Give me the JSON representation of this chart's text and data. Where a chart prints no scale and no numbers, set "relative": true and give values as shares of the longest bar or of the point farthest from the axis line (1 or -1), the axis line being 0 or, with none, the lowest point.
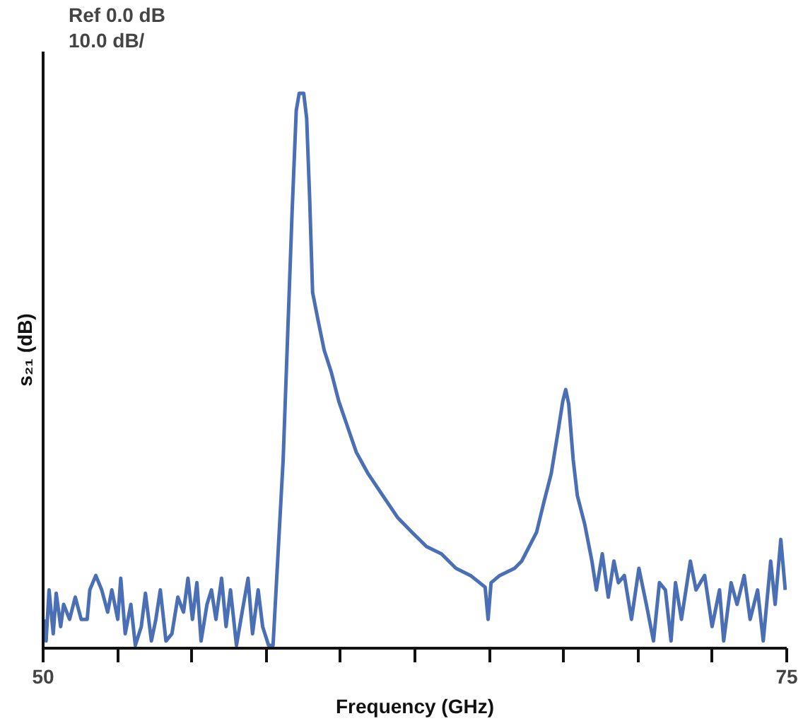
{
  "chart_data": {
    "type": "line",
    "relative": true,
    "annotations": [
      "Ref 0.0 dB",
      "10.0 dB/"
    ],
    "xlabel": "Frequency (GHz)",
    "ylabel": "s₂₁ (dB)",
    "xlim": [
      50,
      75
    ],
    "xticks": [
      50,
      {
        "value": 52.5,
        "label": null
      },
      {
        "value": 55,
        "label": null
      },
      {
        "value": 57.5,
        "label": null
      },
      {
        "value": 60,
        "label": null
      },
      {
        "value": 62.5,
        "label": null
      },
      {
        "value": 65,
        "label": null
      },
      {
        "value": 67.5,
        "label": null
      },
      {
        "value": 70,
        "label": null
      },
      {
        "value": 72.5,
        "label": null
      },
      75
    ],
    "grid": false,
    "marker": "none",
    "line_style": "solid",
    "series": [
      {
        "color": "#4a6fb5",
        "x": [
          50.05,
          50.1,
          50.2,
          50.34,
          50.44,
          50.59,
          50.69,
          50.89,
          51.08,
          51.28,
          51.48,
          51.57,
          51.77,
          51.97,
          52.17,
          52.31,
          52.51,
          52.61,
          52.76,
          52.95,
          53.1,
          53.3,
          53.44,
          53.64,
          53.79,
          53.94,
          54.13,
          54.33,
          54.53,
          54.72,
          54.87,
          55.02,
          55.17,
          55.31,
          55.51,
          55.66,
          55.81,
          56.0,
          56.15,
          56.3,
          56.5,
          56.69,
          56.89,
          57.04,
          57.23,
          57.38,
          57.58,
          57.73,
          58.07,
          58.37,
          58.51,
          58.61,
          58.76,
          58.86,
          58.96,
          59.06,
          59.25,
          59.45,
          59.69,
          59.94,
          60.19,
          60.53,
          60.93,
          61.42,
          61.91,
          62.4,
          62.89,
          63.39,
          63.88,
          64.37,
          64.86,
          64.96,
          65.06,
          65.35,
          65.85,
          66.09,
          66.34,
          66.59,
          66.83,
          67.08,
          67.32,
          67.47,
          67.57,
          67.67,
          67.82,
          67.96,
          68.21,
          68.45,
          68.6,
          68.8,
          69.0,
          69.19,
          69.34,
          69.54,
          69.78,
          70.03,
          70.28,
          70.52,
          70.72,
          70.92,
          71.11,
          71.26,
          71.46,
          71.76,
          71.95,
          72.24,
          72.49,
          72.74,
          72.88,
          73.13,
          73.33,
          73.57,
          73.77,
          74.02,
          74.21,
          74.46,
          74.61,
          74.8,
          74.95
        ],
        "values": [
          0.052,
          0.013,
          0.105,
          0.026,
          0.099,
          0.039,
          0.079,
          0.052,
          0.092,
          0.052,
          0.052,
          0.105,
          0.131,
          0.105,
          0.065,
          0.105,
          0.052,
          0.126,
          0.026,
          0.079,
          0.005,
          0.039,
          0.099,
          0.013,
          0.052,
          0.105,
          0.013,
          0.026,
          0.092,
          0.065,
          0.126,
          0.052,
          0.118,
          0.013,
          0.079,
          0.105,
          0.052,
          0.126,
          0.039,
          0.105,
          0.005,
          0.065,
          0.126,
          0.026,
          0.105,
          0.039,
          0.005,
          0.005,
          0.34,
          0.785,
          0.969,
          1.0,
          1.0,
          0.955,
          0.812,
          0.641,
          0.589,
          0.537,
          0.497,
          0.445,
          0.406,
          0.353,
          0.314,
          0.275,
          0.236,
          0.209,
          0.183,
          0.17,
          0.144,
          0.131,
          0.11,
          0.052,
          0.118,
          0.131,
          0.144,
          0.157,
          0.183,
          0.209,
          0.262,
          0.314,
          0.393,
          0.445,
          0.466,
          0.44,
          0.34,
          0.275,
          0.223,
          0.157,
          0.105,
          0.17,
          0.092,
          0.157,
          0.118,
          0.131,
          0.052,
          0.144,
          0.079,
          0.013,
          0.118,
          0.105,
          0.013,
          0.118,
          0.052,
          0.157,
          0.105,
          0.131,
          0.039,
          0.105,
          0.013,
          0.118,
          0.079,
          0.131,
          0.052,
          0.105,
          0.013,
          0.157,
          0.079,
          0.196,
          0.105
        ]
      }
    ]
  }
}
